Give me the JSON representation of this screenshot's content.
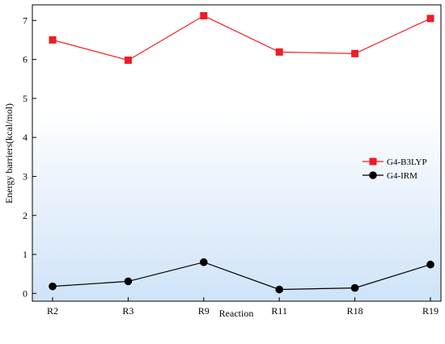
{
  "chart_data": {
    "type": "line",
    "categories": [
      "R2",
      "R3",
      "R9",
      "R11",
      "R18",
      "R19"
    ],
    "series": [
      {
        "name": "G4-B3LYP",
        "values": [
          6.5,
          5.98,
          7.12,
          6.19,
          6.15,
          7.05
        ],
        "color": "#ee1c25",
        "marker": "square"
      },
      {
        "name": "G4-IRM",
        "values": [
          0.18,
          0.31,
          0.8,
          0.1,
          0.14,
          0.74
        ],
        "color": "#000000",
        "marker": "circle"
      }
    ],
    "xlabel": "Reaction",
    "ylabel": "Energy barriers(kcal/mol)",
    "ylim": [
      -0.2,
      7.4
    ],
    "yticks": [
      0,
      1,
      2,
      3,
      4,
      5,
      6,
      7
    ],
    "grid": false,
    "legend": "right-middle",
    "background": "white-to-light-blue gradient"
  }
}
